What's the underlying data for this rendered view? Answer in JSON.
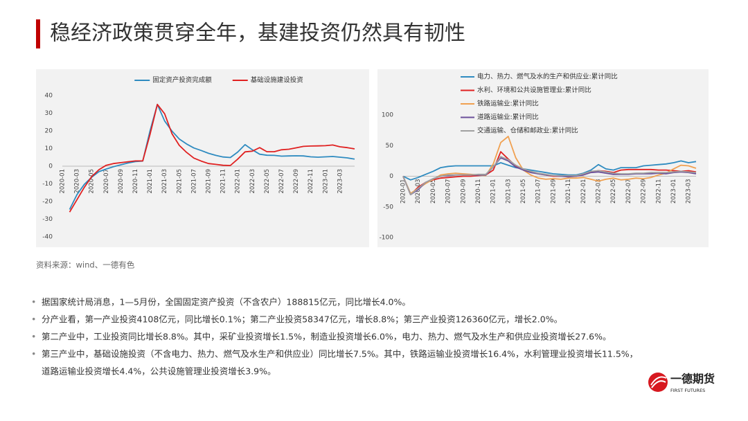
{
  "title": "稳经济政策贯穿全年，基建投资仍然具有韧性",
  "chart_data": [
    {
      "type": "line",
      "legend": "top",
      "categories": [
        "2020-01",
        null,
        "2020-03",
        null,
        "2020-05",
        null,
        "2020-07",
        null,
        "2020-09",
        null,
        "2020-11",
        null,
        "2021-01",
        null,
        "2021-03",
        null,
        "2021-05",
        null,
        "2021-07",
        null,
        "2021-09",
        null,
        "2021-11",
        null,
        "2022-01",
        null,
        "2022-03",
        null,
        "2022-05",
        null,
        "2022-07",
        null,
        "2022-09",
        null,
        "2022-11",
        null,
        "2023-01",
        null,
        "2023-03",
        null,
        null
      ],
      "ylim": [
        -40,
        40
      ],
      "yticks": [
        -40,
        -30,
        -20,
        -10,
        0,
        10,
        20,
        30,
        40
      ],
      "grid": false,
      "series": [
        {
          "name": "固定资产投资完成额",
          "color": "#2e8bc0",
          "values": [
            null,
            -24.5,
            -16.1,
            -10.3,
            -6.3,
            -3.1,
            -1.6,
            -0.3,
            0.8,
            1.8,
            2.6,
            2.9,
            20,
            35,
            25.6,
            19.9,
            15.4,
            12.6,
            10.3,
            8.9,
            7.3,
            6.1,
            5.2,
            4.9,
            8,
            12.2,
            9.3,
            6.8,
            6.2,
            6.1,
            5.7,
            5.8,
            5.9,
            5.8,
            5.3,
            5.1,
            5.3,
            5.5,
            5.1,
            4.7,
            4.0
          ]
        },
        {
          "name": "基础设施建设投资",
          "color": "#e02020",
          "values": [
            null,
            -26,
            -19,
            -12,
            -6,
            -2,
            0.5,
            1.5,
            2,
            2.5,
            3,
            3,
            18,
            35,
            29.7,
            18.4,
            11.8,
            7.8,
            4.6,
            2.9,
            1.5,
            1,
            0.5,
            0.4,
            4,
            8.1,
            8.5,
            10.5,
            8.2,
            8.2,
            9.3,
            9.6,
            10.4,
            11.2,
            11.4,
            11.5,
            11.6,
            12,
            11,
            10.5,
            9.8
          ]
        }
      ]
    },
    {
      "type": "line",
      "legend": "top-left",
      "categories": [
        "2020-01",
        null,
        "2020-03",
        null,
        "2020-05",
        null,
        "2020-07",
        null,
        "2020-09",
        null,
        "2020-11",
        null,
        "2021-01",
        null,
        "2021-03",
        null,
        "2021-05",
        null,
        "2021-07",
        null,
        "2021-09",
        null,
        "2021-11",
        null,
        "2022-01",
        null,
        "2022-03",
        null,
        "2022-05",
        null,
        "2022-07",
        null,
        "2022-09",
        null,
        "2022-11",
        null,
        "2023-01",
        null,
        "2023-03",
        null
      ],
      "ylim": [
        -100,
        100
      ],
      "yticks": [
        -100,
        -50,
        0,
        50,
        100
      ],
      "grid": false,
      "series": [
        {
          "name": "电力、热力、燃气及水的生产和供应业:累计同比",
          "color": "#2e8bc0",
          "values": [
            0,
            -6,
            -2,
            3,
            8,
            14,
            16,
            17,
            17,
            17,
            17,
            17,
            17,
            22,
            18,
            14,
            12,
            10,
            8,
            6,
            4,
            3,
            2,
            2,
            5,
            10,
            19,
            12,
            10,
            14,
            14,
            14,
            17,
            18,
            19,
            20,
            22,
            25,
            22,
            24
          ]
        },
        {
          "name": "水利、环境和公共设施管理业:累计同比",
          "color": "#e02020",
          "values": [
            0,
            -30,
            -18,
            -10,
            -6,
            -3,
            -2,
            -1,
            0,
            0,
            1,
            2,
            10,
            40,
            28,
            17,
            12,
            7,
            4,
            2,
            0,
            0,
            0,
            0,
            3,
            7,
            9,
            8,
            6,
            10,
            11,
            11,
            11,
            11,
            10,
            10,
            9,
            8,
            9,
            7
          ]
        },
        {
          "name": "铁路运输业:累计同比",
          "color": "#f0a050",
          "values": [
            0,
            -28,
            -20,
            -12,
            -5,
            2,
            4,
            5,
            4,
            3,
            2,
            1,
            20,
            55,
            65,
            30,
            10,
            2,
            -3,
            -5,
            -4,
            -5,
            -3,
            -3,
            -2,
            -5,
            -8,
            -5,
            -3,
            -6,
            -5,
            -3,
            -4,
            -2,
            2,
            5,
            12,
            18,
            17,
            13
          ]
        },
        {
          "name": "道路运输业:累计同比",
          "color": "#6b4f9a",
          "values": [
            0,
            -30,
            -22,
            -10,
            -4,
            0,
            1,
            2,
            2,
            2,
            2,
            2,
            15,
            30,
            25,
            15,
            10,
            6,
            4,
            2,
            1,
            0,
            -1,
            0,
            2,
            6,
            7,
            5,
            3,
            3,
            3,
            4,
            4,
            4,
            5,
            4,
            6,
            7,
            6,
            4
          ]
        },
        {
          "name": "交通运输、仓储和邮政业:累计同比",
          "color": "#a0a0a0",
          "values": [
            0,
            -30,
            -20,
            -10,
            -4,
            0,
            2,
            2,
            2,
            2,
            3,
            3,
            15,
            32,
            27,
            18,
            12,
            8,
            5,
            3,
            1,
            1,
            1,
            1,
            4,
            8,
            9,
            7,
            5,
            4,
            4,
            5,
            5,
            6,
            6,
            6,
            7,
            8,
            7,
            6
          ]
        }
      ]
    }
  ],
  "source": "资料来源：wind、一德有色",
  "bullets": [
    [
      "据国家统计局消息，1—5月份，全国固定资产投资（不含农户）188815亿元，同比增长4.0%。"
    ],
    [
      "分产业看，第一产业投资4108亿元，同比增长0.1%；第二产业投资58347亿元，增长8.8%；第三产业投资126360亿元，增长2.0%。"
    ],
    [
      "第二产业中，工业投资同比增长8.8%。其中，采矿业投资增长1.5%，制造业投资增长6.0%，电力、热力、燃气及水生产和供应业投资增长27.6%。"
    ],
    [
      "第三产业中，基础设施投资（不含电力、热力、燃气及水生产和供应业）同比增长7.5%。其中，铁路运输业投资增长16.4%，水利管理业投资增长11.5%，",
      "道路运输业投资增长4.4%，公共设施管理业投资增长3.9%。"
    ]
  ],
  "logo": {
    "name": "一德期货",
    "english": "FIRST FUTURES"
  }
}
